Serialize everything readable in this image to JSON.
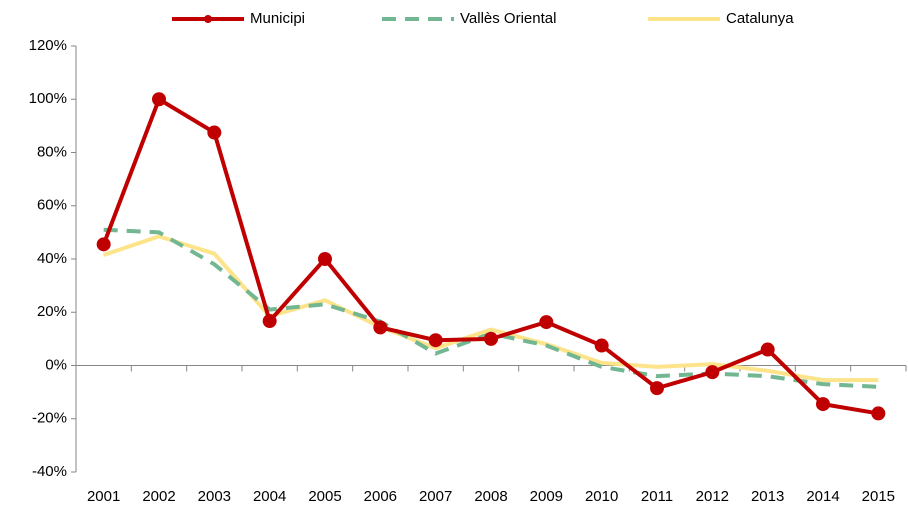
{
  "chart_data": {
    "type": "line",
    "categories": [
      "2001",
      "2002",
      "2003",
      "2004",
      "2005",
      "2006",
      "2007",
      "2008",
      "2009",
      "2010",
      "2011",
      "2012",
      "2013",
      "2014",
      "2015"
    ],
    "series": [
      {
        "name": "Municipi",
        "color": "#c00000",
        "style": "solid",
        "markers": true,
        "values": [
          45.5,
          100,
          87.5,
          16.7,
          40,
          14.3,
          9.5,
          10,
          16.3,
          7.5,
          -8.5,
          -2.5,
          6,
          -14.5,
          -18
        ]
      },
      {
        "name": "Vallès Oriental",
        "color": "#72b692",
        "style": "dashed",
        "markers": false,
        "values": [
          51,
          50,
          38,
          21,
          23,
          16.5,
          4.5,
          12,
          7.5,
          -0.5,
          -4,
          -3,
          -4,
          -7,
          -8
        ]
      },
      {
        "name": "Catalunya",
        "color": "#fde38a",
        "style": "solid",
        "markers": false,
        "values": [
          41.5,
          48.5,
          42,
          18.5,
          24.5,
          14.5,
          6.5,
          13.5,
          8,
          1,
          -0.5,
          0.5,
          -2,
          -5.5,
          -5.5
        ]
      }
    ],
    "ylim": [
      -40,
      120
    ],
    "yticks": [
      {
        "value": -40,
        "label": "-40%"
      },
      {
        "value": -20,
        "label": "-20%"
      },
      {
        "value": 0,
        "label": "0%"
      },
      {
        "value": 20,
        "label": "20%"
      },
      {
        "value": 40,
        "label": "40%"
      },
      {
        "value": 60,
        "label": "60%"
      },
      {
        "value": 80,
        "label": "80%"
      },
      {
        "value": 100,
        "label": "100%"
      },
      {
        "value": 120,
        "label": "120%"
      }
    ],
    "grid": false,
    "legend": "top"
  }
}
